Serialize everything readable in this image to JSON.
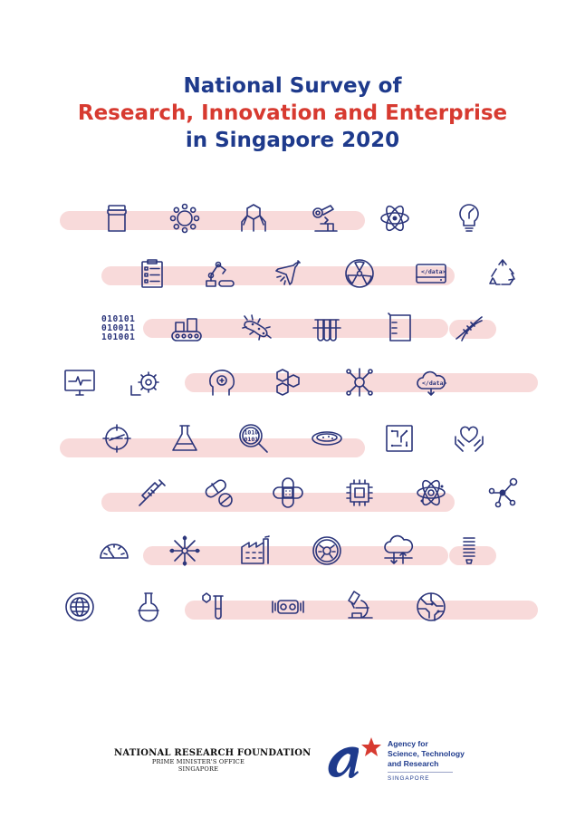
{
  "title": {
    "line1": "National Survey of",
    "line2": "Research, Innovation and Enterprise",
    "line3": "in Singapore 2020"
  },
  "colors": {
    "navy": "#1e3a8c",
    "red": "#d73a30",
    "band": "#f8dada",
    "icon": "#2a347a"
  },
  "icons": {
    "row1": [
      "jar-icon",
      "virus-icon",
      "hexagon-molecule-icon",
      "microscope-robot-icon",
      "atom-icon",
      "lightbulb-icon"
    ],
    "row2": [
      "clipboard-checklist-icon",
      "robotic-arm-icon",
      "airplane-icon",
      "radiation-icon",
      "data-drive-icon",
      "recycle-icon"
    ],
    "row3": [
      "binary-code-icon",
      "conveyor-belt-icon",
      "bacteria-icon",
      "test-tubes-icon",
      "beaker-icon",
      "dna-icon"
    ],
    "row4": [
      "heartbeat-monitor-icon",
      "gears-icon",
      "brain-head-icon",
      "molecule-cluster-icon",
      "network-node-icon",
      "cloud-data-icon"
    ],
    "row5": [
      "compass-icon",
      "flask-icon",
      "magnifier-binary-icon",
      "petri-dish-icon",
      "circuit-chip-icon",
      "heart-hands-icon"
    ],
    "row6": [
      "syringe-icon",
      "pill-icon",
      "bandage-icon",
      "microchip-icon",
      "atom-orbit-icon",
      "molecule-network-icon"
    ],
    "row7": [
      "gauge-icon",
      "snowflake-icon",
      "factory-icon",
      "cell-icon",
      "cloud-transfer-icon",
      "spring-icon"
    ],
    "row8": [
      "globe-icon",
      "round-flask-icon",
      "test-tube-icon",
      "vr-headset-icon",
      "lab-microscope-icon",
      "circuit-globe-icon"
    ]
  },
  "icon_text": {
    "data_drive": "</data>",
    "cloud_data": "</data>",
    "binary_lines": [
      "010101",
      "010011",
      "101001"
    ],
    "magnifier_binary": [
      "1010",
      "0101"
    ]
  },
  "logos": {
    "nrf": {
      "title": "NATIONAL RESEARCH FOUNDATION",
      "sub1": "PRIME MINISTER'S OFFICE",
      "sub2": "SINGAPORE"
    },
    "astar": {
      "line1": "Agency for",
      "line2": "Science, Technology",
      "line3": "and Research",
      "country": "SINGAPORE"
    }
  }
}
